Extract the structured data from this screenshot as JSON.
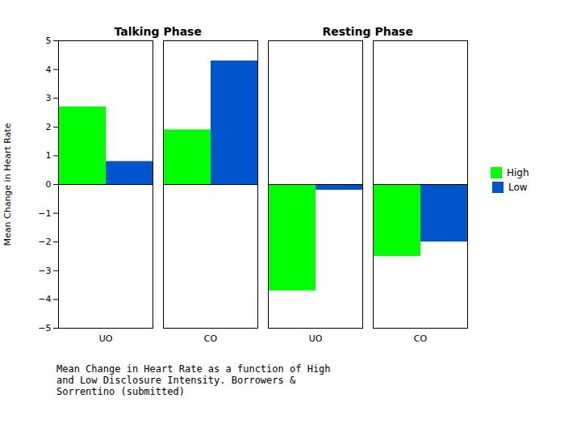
{
  "chart_data": {
    "type": "bar",
    "categories": [
      "UO",
      "CO",
      "UO",
      "CO"
    ],
    "series": [
      {
        "name": "High",
        "color": "#00FF00",
        "values": [
          2.7,
          1.9,
          -3.7,
          -2.5
        ]
      },
      {
        "name": "Low",
        "color": "#0055CC",
        "values": [
          0.8,
          4.3,
          -0.2,
          -2.0
        ]
      }
    ],
    "ylabel": "Mean Change in Heart Rate",
    "ylim": [
      -5,
      5
    ],
    "yticks": [
      -5,
      -4,
      -3,
      -2,
      -1,
      0,
      1,
      2,
      3,
      4,
      5
    ],
    "annotations": [
      "Talking Phase",
      "Resting Phase"
    ],
    "caption": "Mean Change in Heart Rate as a function of High\nand Low Disclosure Intensity. Borrowers &\nSorrentino (submitted)",
    "legend": "right"
  }
}
